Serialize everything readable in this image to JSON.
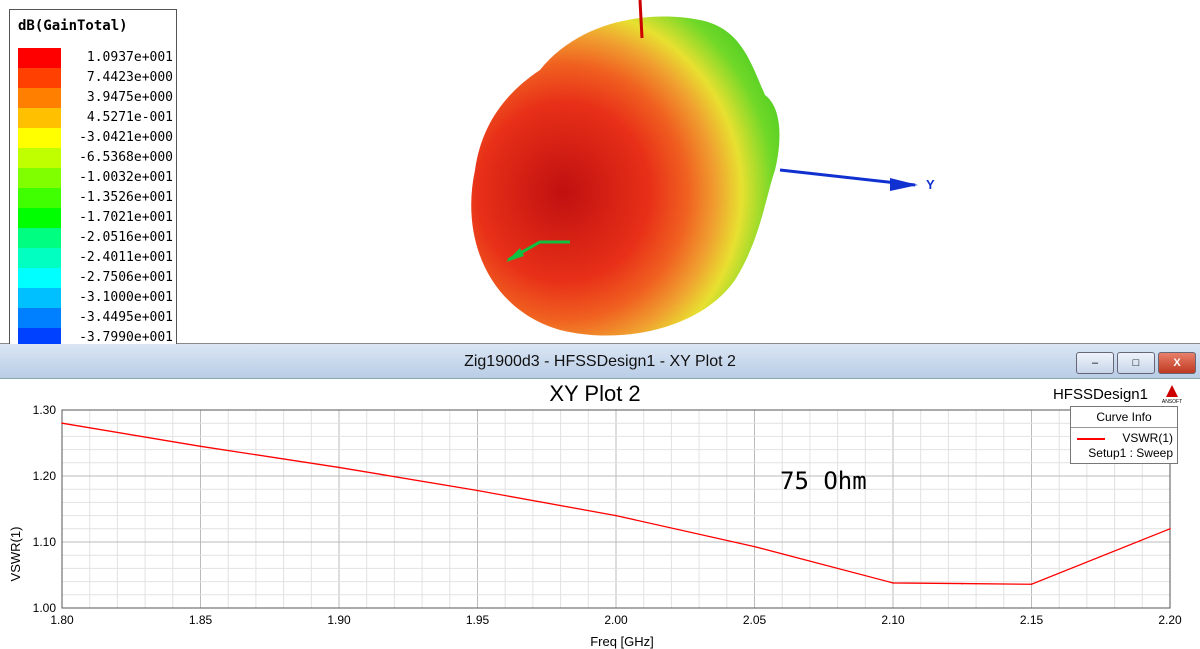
{
  "legend": {
    "title": "dB(GainTotal)",
    "entries": [
      {
        "value": "1.0937e+001",
        "color": "#ff0000"
      },
      {
        "value": "7.4423e+000",
        "color": "#ff4000"
      },
      {
        "value": "3.9475e+000",
        "color": "#ff8000"
      },
      {
        "value": "4.5271e-001",
        "color": "#ffc000"
      },
      {
        "value": "-3.0421e+000",
        "color": "#ffff00"
      },
      {
        "value": "-6.5368e+000",
        "color": "#c0ff00"
      },
      {
        "value": "-1.0032e+001",
        "color": "#80ff00"
      },
      {
        "value": "-1.3526e+001",
        "color": "#40ff00"
      },
      {
        "value": "-1.7021e+001",
        "color": "#00ff00"
      },
      {
        "value": "-2.0516e+001",
        "color": "#00ff80"
      },
      {
        "value": "-2.4011e+001",
        "color": "#00ffc0"
      },
      {
        "value": "-2.7506e+001",
        "color": "#00ffff"
      },
      {
        "value": "-3.1000e+001",
        "color": "#00c0ff"
      },
      {
        "value": "-3.4495e+001",
        "color": "#0080ff"
      },
      {
        "value": "-3.7990e+001",
        "color": "#0040ff"
      }
    ]
  },
  "scene": {
    "axis_y_label": "Y"
  },
  "window": {
    "title": "Zig1900d3 - HFSSDesign1 - XY Plot 2",
    "minimize": "–",
    "maximize": "□",
    "close": "X"
  },
  "chart_data": {
    "type": "line",
    "title": "XY Plot 2",
    "design_label": "HFSSDesign1",
    "logo_text": "ANSOFT",
    "xlabel": "Freq [GHz]",
    "ylabel": "VSWR(1)",
    "xlim": [
      1.8,
      2.2
    ],
    "ylim": [
      1.0,
      1.3
    ],
    "xticks": [
      "1.80",
      "1.85",
      "1.90",
      "1.95",
      "2.00",
      "2.05",
      "2.10",
      "2.15",
      "2.20"
    ],
    "yticks": [
      "1.00",
      "1.10",
      "1.20",
      "1.30"
    ],
    "annotation": "75 Ohm",
    "grid": true,
    "legend": {
      "title": "Curve Info",
      "placement": "top-right",
      "entries": [
        {
          "name": "VSWR(1)",
          "sub": "Setup1 : Sweep",
          "color": "#ff0000"
        }
      ]
    },
    "series": [
      {
        "name": "VSWR(1)",
        "x": [
          1.8,
          1.85,
          1.9,
          1.95,
          2.0,
          2.05,
          2.1,
          2.125,
          2.15,
          2.2
        ],
        "y": [
          1.28,
          1.245,
          1.213,
          1.178,
          1.14,
          1.093,
          1.038,
          1.037,
          1.036,
          1.12
        ]
      }
    ]
  }
}
